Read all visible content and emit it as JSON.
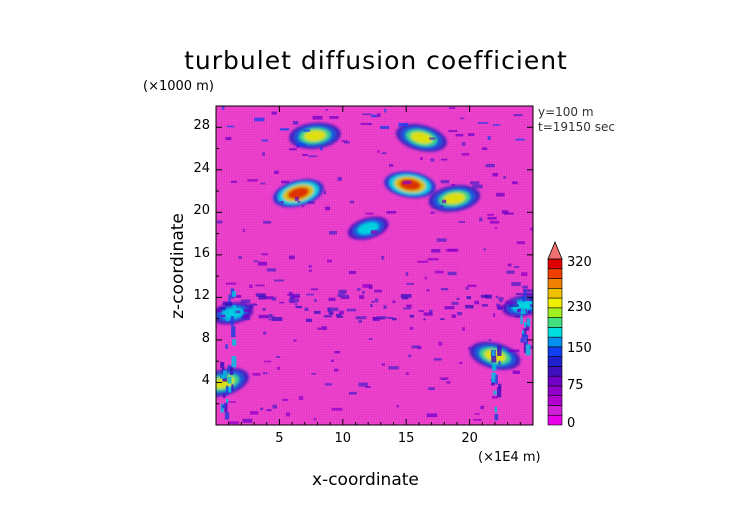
{
  "chart_data": {
    "type": "heatmap",
    "title": "turbulet diffusion coefficient",
    "xlabel": "x-coordinate",
    "ylabel": "z-coordinate",
    "x_unit": "(×1E4 m)",
    "y_unit": "(×1000 m)",
    "xlim": [
      0,
      25
    ],
    "ylim": [
      0,
      30
    ],
    "x_ticks": [
      5,
      10,
      15,
      20
    ],
    "x_tick_labels": [
      "5",
      "10",
      "15",
      "20"
    ],
    "y_ticks": [
      4,
      8,
      12,
      16,
      20,
      24,
      28
    ],
    "y_tick_labels": [
      "4",
      "8",
      "12",
      "16",
      "20",
      "24",
      "28"
    ],
    "annotations": [
      "y=100 m",
      "t=19150 sec"
    ],
    "colorbar": {
      "ticks": [
        0,
        75,
        150,
        230,
        320
      ],
      "tick_labels": [
        "0",
        "75",
        "150",
        "230",
        "320"
      ],
      "colors": [
        "#e800e8",
        "#d020d8",
        "#b000d0",
        "#9000c8",
        "#7000c8",
        "#4010c0",
        "#2020d0",
        "#1040f0",
        "#0090f0",
        "#00e0e0",
        "#40e080",
        "#a0f020",
        "#f0f000",
        "#f0c000",
        "#f08000",
        "#f04000",
        "#e00000"
      ],
      "background_color": "#e838c8"
    },
    "features": [
      {
        "x": 7.8,
        "z": 27.2,
        "value": 230
      },
      {
        "x": 16.2,
        "z": 27.0,
        "value": 230
      },
      {
        "x": 6.5,
        "z": 21.8,
        "value": 320
      },
      {
        "x": 15.3,
        "z": 22.6,
        "value": 320
      },
      {
        "x": 18.8,
        "z": 21.3,
        "value": 230
      },
      {
        "x": 1.3,
        "z": 10.5,
        "value": 150
      },
      {
        "x": 24.2,
        "z": 11.2,
        "value": 150
      },
      {
        "x": 22.0,
        "z": 6.5,
        "value": 230
      },
      {
        "x": 0.6,
        "z": 4.0,
        "value": 230
      },
      {
        "x": 12.0,
        "z": 18.5,
        "value": 150
      }
    ]
  }
}
